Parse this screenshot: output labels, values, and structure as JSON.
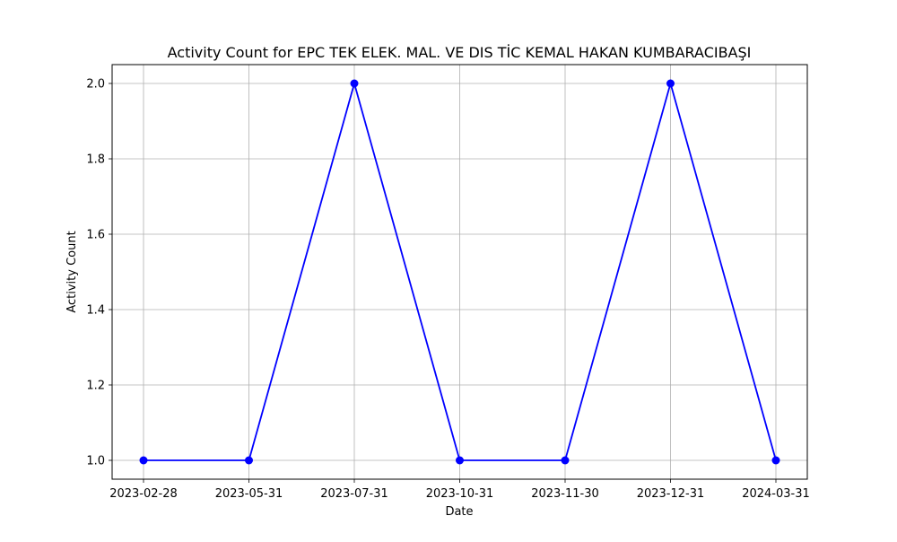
{
  "chart_data": {
    "type": "line",
    "title": "Activity Count for EPC TEK ELEK. MAL. VE DIS TİC KEMAL HAKAN KUMBARACIBAŞI",
    "xlabel": "Date",
    "ylabel": "Activity Count",
    "categories": [
      "2023-02-28",
      "2023-05-31",
      "2023-07-31",
      "2023-10-31",
      "2023-11-30",
      "2023-12-31",
      "2024-03-31"
    ],
    "series": [
      {
        "values": [
          1,
          1,
          2,
          1,
          1,
          2,
          1
        ],
        "color": "#0000ff",
        "marker": "circle"
      }
    ],
    "yticks": [
      "1.0",
      "1.2",
      "1.4",
      "1.6",
      "1.8",
      "2.0"
    ],
    "ylim": [
      0.95,
      2.05
    ],
    "grid": true,
    "legend": "none"
  }
}
